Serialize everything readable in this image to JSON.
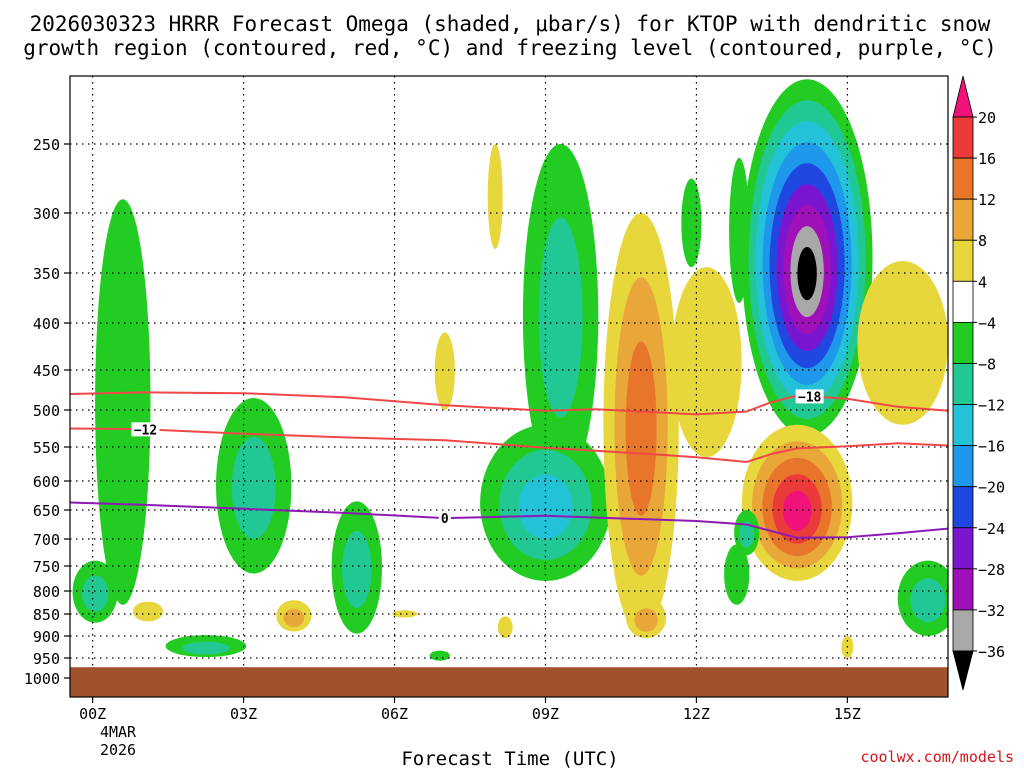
{
  "chart_data": {
    "type": "heatmap",
    "title_lines": [
      "2026030323 HRRR Forecast Omega (shaded, μbar/s) for KTOP with dendritic snow",
      "growth region (contoured, red, °C) and freezing level (contoured, purple, °C)"
    ],
    "xlabel": "Forecast Time (UTC)",
    "credit": "coolwx.com/models",
    "x_range_hours": [
      -0.45,
      17
    ],
    "x_ticks": [
      {
        "hour": 0,
        "label": "00Z"
      },
      {
        "hour": 3,
        "label": "03Z"
      },
      {
        "hour": 6,
        "label": "06Z"
      },
      {
        "hour": 9,
        "label": "09Z"
      },
      {
        "hour": 12,
        "label": "12Z"
      },
      {
        "hour": 15,
        "label": "15Z"
      }
    ],
    "date_label": [
      "4MAR",
      "2026"
    ],
    "y_axis": "pressure (mb)",
    "y_ticks": [
      250,
      300,
      350,
      400,
      450,
      500,
      550,
      600,
      650,
      700,
      750,
      800,
      850,
      900,
      950,
      1000
    ],
    "ground_level_mb": 973,
    "colorbar": {
      "labels": [
        "20",
        "16",
        "12",
        "8",
        "4",
        "−4",
        "−8",
        "−12",
        "−16",
        "−20",
        "−24",
        "−28",
        "−32",
        "−36"
      ],
      "colors": [
        "#f0147a",
        "#ea3a3a",
        "#e8762a",
        "#e9a73a",
        "#e7d73d",
        "#ffffff",
        "#22cc22",
        "#22c894",
        "#24c2d8",
        "#1e98ea",
        "#2048e0",
        "#7a16d0",
        "#a010b8",
        "#a8a8a8",
        "#000000"
      ]
    },
    "contours": [
      {
        "name": "dendritic-upper",
        "label": "−18",
        "label_hour": 14.25,
        "color": "#f04848",
        "points": [
          [
            -0.45,
            480
          ],
          [
            1,
            478
          ],
          [
            3,
            479
          ],
          [
            5,
            484
          ],
          [
            7,
            494
          ],
          [
            9,
            501
          ],
          [
            10,
            499
          ],
          [
            12,
            506
          ],
          [
            13,
            502
          ],
          [
            13.5,
            490
          ],
          [
            14,
            482
          ],
          [
            15,
            486
          ],
          [
            16,
            496
          ],
          [
            17,
            501
          ]
        ]
      },
      {
        "name": "dendritic-lower",
        "label": "−12",
        "label_hour": 1.05,
        "color": "#f04848",
        "points": [
          [
            -0.45,
            525
          ],
          [
            1,
            526
          ],
          [
            3,
            532
          ],
          [
            5,
            537
          ],
          [
            7,
            541
          ],
          [
            9,
            551
          ],
          [
            11,
            560
          ],
          [
            12,
            565
          ],
          [
            13,
            572
          ],
          [
            13.5,
            560
          ],
          [
            14,
            552
          ],
          [
            15,
            549
          ],
          [
            16,
            545
          ],
          [
            17,
            548
          ]
        ]
      },
      {
        "name": "freezing-level",
        "label": "0",
        "label_hour": 7.0,
        "color": "#8e1ab5",
        "points": [
          [
            -0.45,
            637
          ],
          [
            1,
            641
          ],
          [
            3,
            648
          ],
          [
            5,
            655
          ],
          [
            7,
            664
          ],
          [
            9,
            660
          ],
          [
            11,
            666
          ],
          [
            12,
            669
          ],
          [
            13,
            675
          ],
          [
            14,
            698
          ],
          [
            15,
            697
          ],
          [
            16,
            690
          ],
          [
            17,
            682
          ]
        ]
      }
    ],
    "omega_cells": [
      {
        "hour": 0.6,
        "mb": 560,
        "rx_h": 0.55,
        "ry_mb": 270,
        "levels": [
          "#22cc22"
        ]
      },
      {
        "hour": 0.05,
        "mb": 805,
        "rx_h": 0.45,
        "ry_mb": 65,
        "levels": [
          "#22cc22",
          "#22c894"
        ]
      },
      {
        "hour": 3.2,
        "mb": 625,
        "rx_h": 0.75,
        "ry_mb": 140,
        "levels": [
          "#22cc22",
          "#22c894"
        ]
      },
      {
        "hour": 2.25,
        "mb": 923,
        "rx_h": 0.8,
        "ry_mb": 25,
        "levels": [
          "#22cc22",
          "#22c894"
        ]
      },
      {
        "hour": 5.25,
        "mb": 765,
        "rx_h": 0.5,
        "ry_mb": 130,
        "levels": [
          "#22cc22",
          "#22c894"
        ]
      },
      {
        "hour": 9.3,
        "mb": 430,
        "rx_h": 0.75,
        "ry_mb": 180,
        "levels": [
          "#22cc22",
          "#22c894"
        ]
      },
      {
        "hour": 9.0,
        "mb": 650,
        "rx_h": 1.3,
        "ry_mb": 130,
        "levels": [
          "#22cc22",
          "#22c894",
          "#24c2d8"
        ]
      },
      {
        "hour": 10.9,
        "mb": 600,
        "rx_h": 0.75,
        "ry_mb": 300,
        "levels": [
          "#e7d73d",
          "#e9a73a",
          "#e8762a"
        ]
      },
      {
        "hour": 12.2,
        "mb": 455,
        "rx_h": 0.7,
        "ry_mb": 110,
        "levels": [
          "#e7d73d"
        ]
      },
      {
        "hour": 14.2,
        "mb": 370,
        "rx_h": 1.3,
        "ry_mb": 165,
        "levels": [
          "#22cc22",
          "#22c894",
          "#24c2d8",
          "#1e98ea",
          "#2048e0",
          "#7a16d0",
          "#a010b8",
          "#a8a8a8",
          "#000000"
        ]
      },
      {
        "hour": 14.0,
        "mb": 650,
        "rx_h": 1.1,
        "ry_mb": 130,
        "levels": [
          "#e7d73d",
          "#e9a73a",
          "#e8762a",
          "#ea3a3a",
          "#f0147a"
        ]
      },
      {
        "hour": 16.1,
        "mb": 430,
        "rx_h": 0.9,
        "ry_mb": 90,
        "levels": [
          "#e7d73d"
        ]
      },
      {
        "hour": 16.6,
        "mb": 820,
        "rx_h": 0.6,
        "ry_mb": 80,
        "levels": [
          "#22cc22",
          "#22c894"
        ]
      },
      {
        "hour": 13.0,
        "mb": 690,
        "rx_h": 0.25,
        "ry_mb": 40,
        "levels": [
          "#22cc22",
          "#22c894"
        ]
      },
      {
        "hour": 12.85,
        "mb": 320,
        "rx_h": 0.2,
        "ry_mb": 60,
        "levels": [
          "#22cc22"
        ]
      },
      {
        "hour": 11.9,
        "mb": 310,
        "rx_h": 0.2,
        "ry_mb": 35,
        "levels": [
          "#22cc22"
        ]
      },
      {
        "hour": 11.0,
        "mb": 860,
        "rx_h": 0.4,
        "ry_mb": 45,
        "levels": [
          "#e7d73d",
          "#e9a73a"
        ]
      },
      {
        "hour": 8.0,
        "mb": 290,
        "rx_h": 0.15,
        "ry_mb": 40,
        "levels": [
          "#e7d73d"
        ]
      },
      {
        "hour": 7.0,
        "mb": 455,
        "rx_h": 0.2,
        "ry_mb": 45,
        "levels": [
          "#e7d73d"
        ]
      },
      {
        "hour": 4.0,
        "mb": 855,
        "rx_h": 0.35,
        "ry_mb": 35,
        "levels": [
          "#e7d73d",
          "#e9a73a"
        ]
      },
      {
        "hour": 1.1,
        "mb": 845,
        "rx_h": 0.3,
        "ry_mb": 22,
        "levels": [
          "#e7d73d"
        ]
      },
      {
        "hour": 6.2,
        "mb": 850,
        "rx_h": 0.25,
        "ry_mb": 8,
        "levels": [
          "#e7d73d"
        ]
      },
      {
        "hour": 8.2,
        "mb": 880,
        "rx_h": 0.15,
        "ry_mb": 25,
        "levels": [
          "#e7d73d"
        ]
      },
      {
        "hour": 6.9,
        "mb": 945,
        "rx_h": 0.2,
        "ry_mb": 12,
        "levels": [
          "#22cc22"
        ]
      },
      {
        "hour": 15.0,
        "mb": 925,
        "rx_h": 0.12,
        "ry_mb": 25,
        "levels": [
          "#e7d73d"
        ]
      },
      {
        "hour": 12.8,
        "mb": 770,
        "rx_h": 0.25,
        "ry_mb": 60,
        "levels": [
          "#22cc22"
        ]
      }
    ]
  }
}
